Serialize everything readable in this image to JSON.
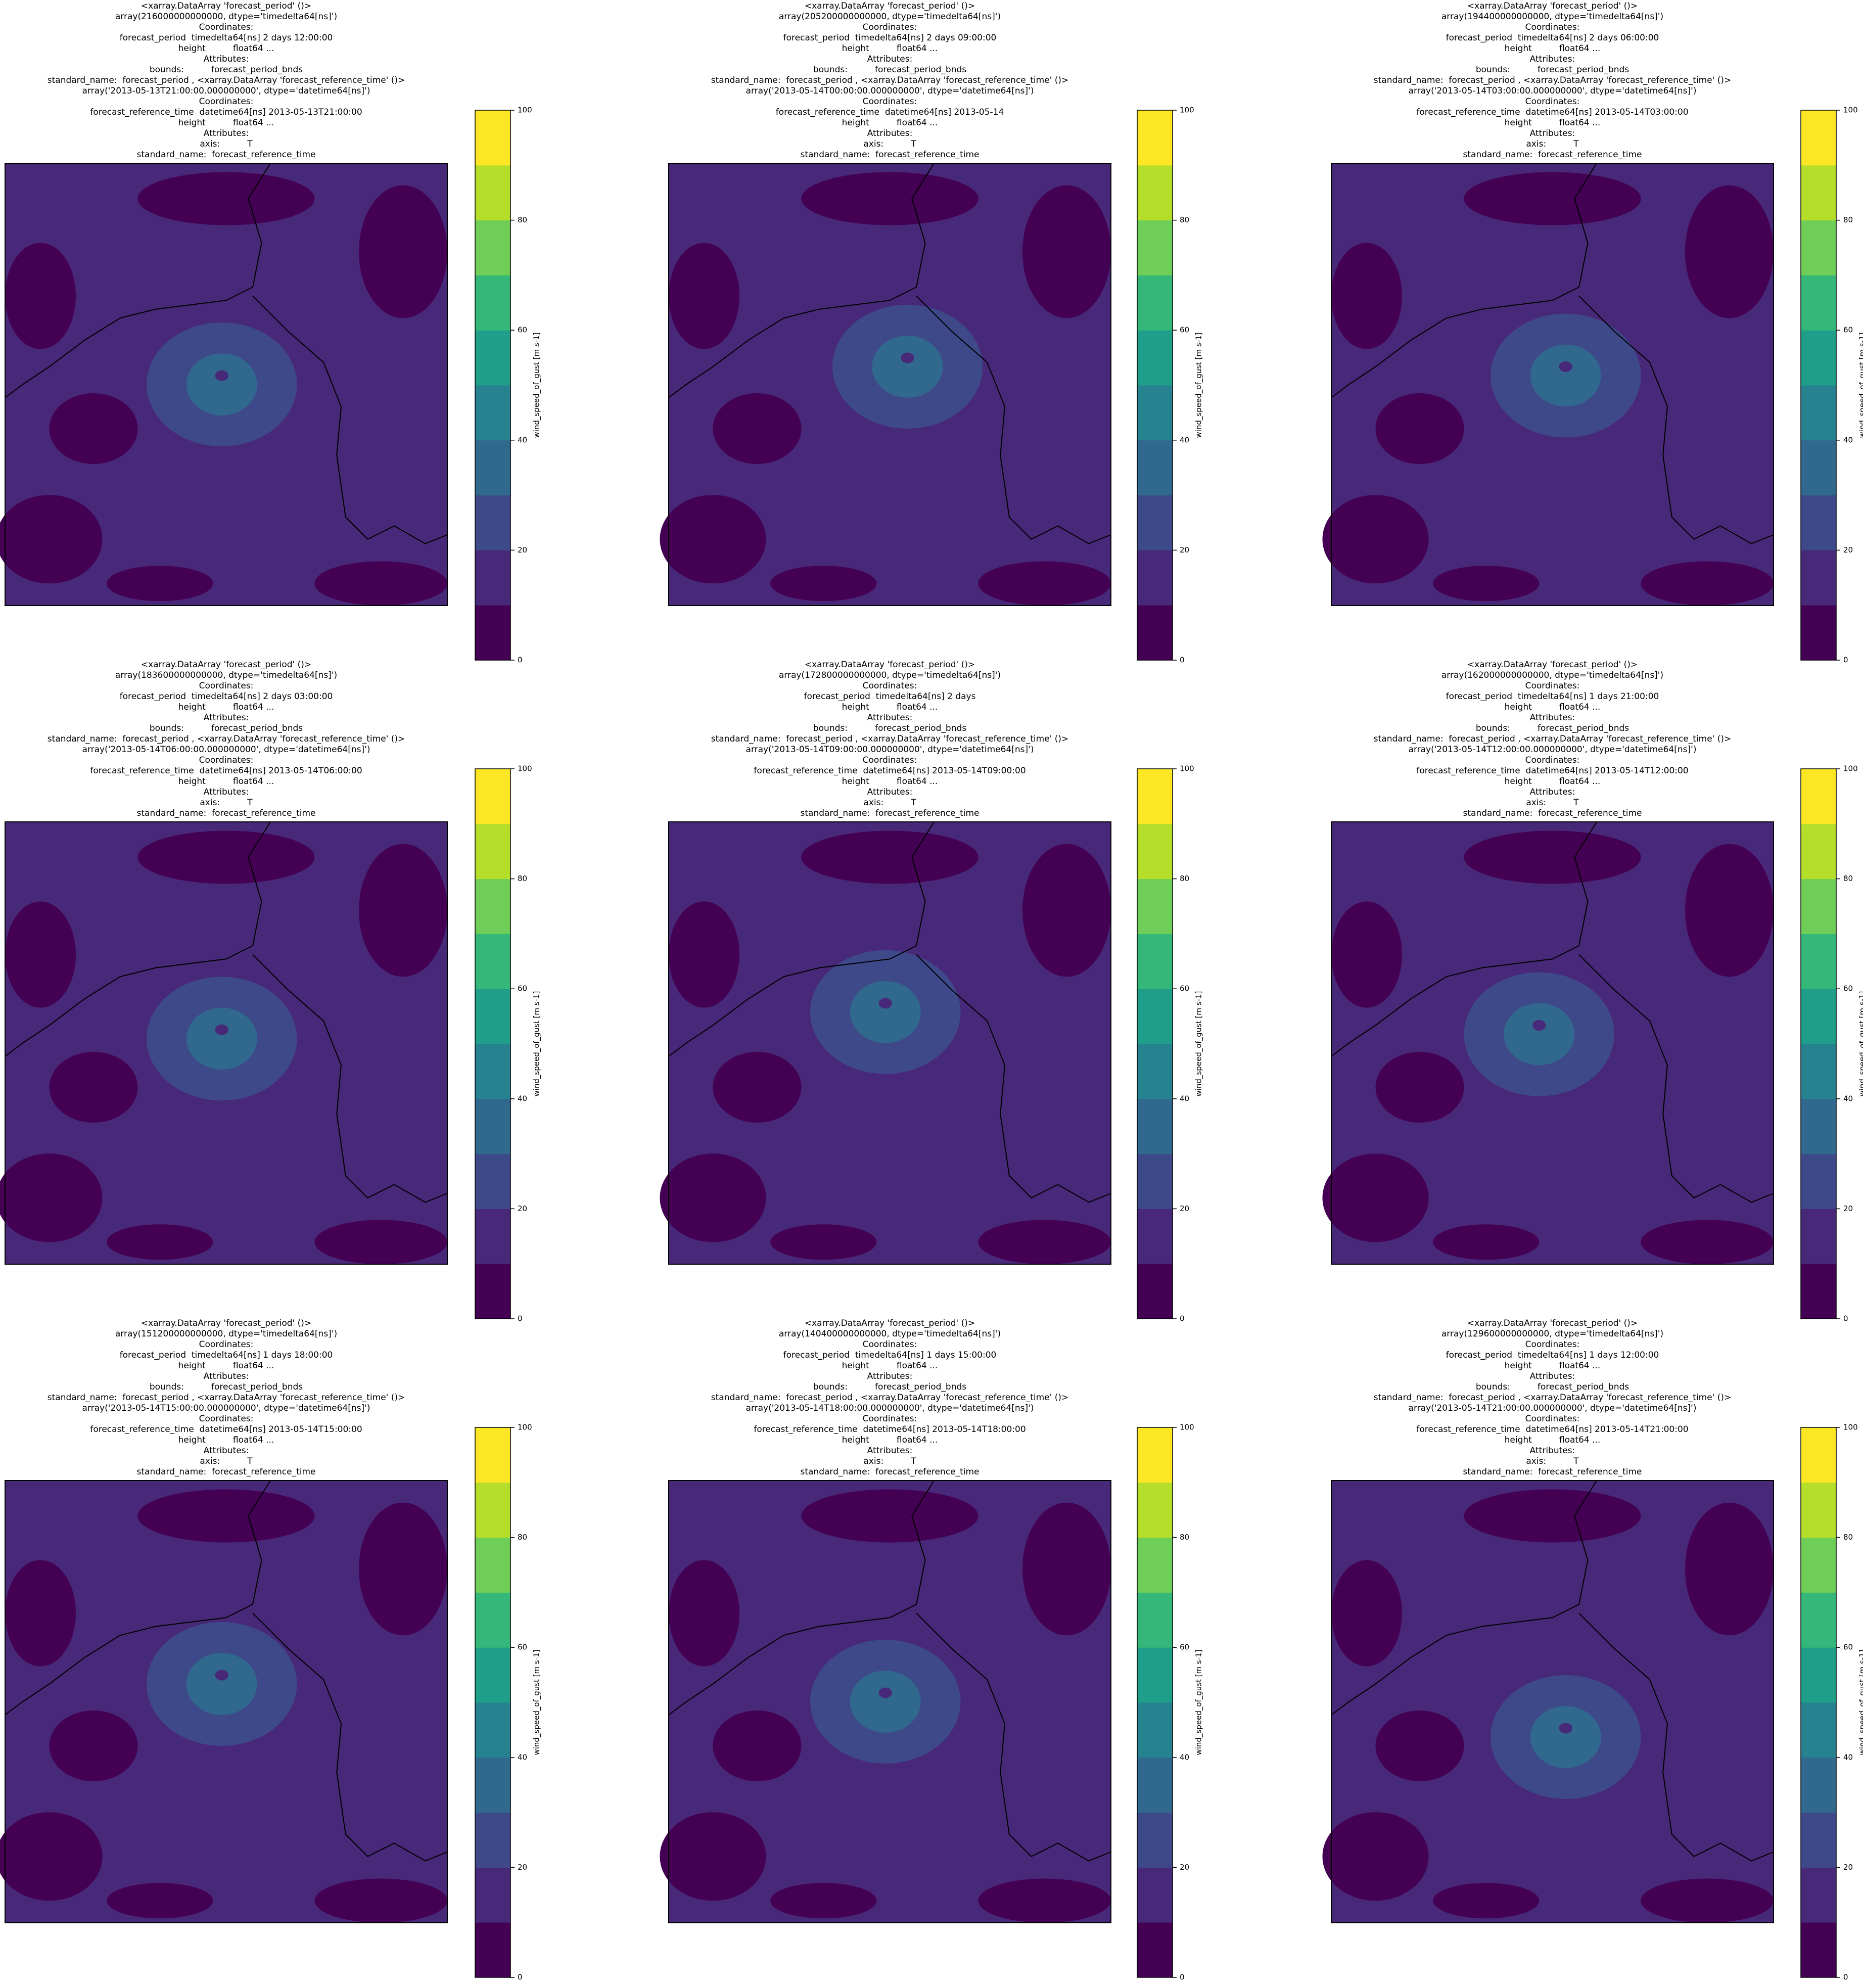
{
  "chart_data": [
    {
      "type": "contour",
      "title_lines": [
        "<xarray.DataArray 'forecast_period' ()>",
        "array(216000000000000, dtype='timedelta64[ns]')",
        "Coordinates:",
        "forecast_period  timedelta64[ns] 2 days 12:00:00",
        "height          float64 ...",
        "Attributes:",
        "bounds:          forecast_period_bnds",
        "standard_name:  forecast_period , <xarray.DataArray 'forecast_reference_time' ()>",
        "array('2013-05-13T21:00:00.000000000', dtype='datetime64[ns]')",
        "Coordinates:",
        "forecast_reference_time  datetime64[ns] 2013-05-13T21:00:00",
        "height          float64 ...",
        "Attributes:",
        "axis:          T",
        "standard_name:  forecast_reference_time"
      ],
      "colorbar": {
        "label": "wind_speed_of_gust [m s-1]",
        "lim": [
          0,
          100
        ],
        "ticks": [
          0,
          20,
          40,
          60,
          80,
          100
        ],
        "levels": [
          0,
          10,
          20,
          30,
          40,
          50,
          60,
          70,
          80,
          90,
          100
        ],
        "colors": [
          "#440154",
          "#482878",
          "#3e4989",
          "#31688e",
          "#26828e",
          "#1f9e89",
          "#35b779",
          "#6ece58",
          "#b5de2b",
          "#fde725"
        ]
      }
    },
    {
      "type": "contour",
      "title_lines": [
        "<xarray.DataArray 'forecast_period' ()>",
        "array(205200000000000, dtype='timedelta64[ns]')",
        "Coordinates:",
        "forecast_period  timedelta64[ns] 2 days 09:00:00",
        "height          float64 ...",
        "Attributes:",
        "bounds:          forecast_period_bnds",
        "standard_name:  forecast_period , <xarray.DataArray 'forecast_reference_time' ()>",
        "array('2013-05-14T00:00:00.000000000', dtype='datetime64[ns]')",
        "Coordinates:",
        "forecast_reference_time  datetime64[ns] 2013-05-14",
        "height          float64 ...",
        "Attributes:",
        "axis:          T",
        "standard_name:  forecast_reference_time"
      ],
      "colorbar": {
        "label": "wind_speed_of_gust [m s-1]",
        "lim": [
          0,
          100
        ],
        "ticks": [
          0,
          20,
          40,
          60,
          80,
          100
        ],
        "levels": [
          0,
          10,
          20,
          30,
          40,
          50,
          60,
          70,
          80,
          90,
          100
        ],
        "colors": [
          "#440154",
          "#482878",
          "#3e4989",
          "#31688e",
          "#26828e",
          "#1f9e89",
          "#35b779",
          "#6ece58",
          "#b5de2b",
          "#fde725"
        ]
      }
    },
    {
      "type": "contour",
      "title_lines": [
        "<xarray.DataArray 'forecast_period' ()>",
        "array(194400000000000, dtype='timedelta64[ns]')",
        "Coordinates:",
        "forecast_period  timedelta64[ns] 2 days 06:00:00",
        "height          float64 ...",
        "Attributes:",
        "bounds:          forecast_period_bnds",
        "standard_name:  forecast_period , <xarray.DataArray 'forecast_reference_time' ()>",
        "array('2013-05-14T03:00:00.000000000', dtype='datetime64[ns]')",
        "Coordinates:",
        "forecast_reference_time  datetime64[ns] 2013-05-14T03:00:00",
        "height          float64 ...",
        "Attributes:",
        "axis:          T",
        "standard_name:  forecast_reference_time"
      ],
      "colorbar": {
        "label": "wind_speed_of_gust [m s-1]",
        "lim": [
          0,
          100
        ],
        "ticks": [
          0,
          20,
          40,
          60,
          80,
          100
        ],
        "levels": [
          0,
          10,
          20,
          30,
          40,
          50,
          60,
          70,
          80,
          90,
          100
        ],
        "colors": [
          "#440154",
          "#482878",
          "#3e4989",
          "#31688e",
          "#26828e",
          "#1f9e89",
          "#35b779",
          "#6ece58",
          "#b5de2b",
          "#fde725"
        ]
      }
    },
    {
      "type": "contour",
      "title_lines": [
        "<xarray.DataArray 'forecast_period' ()>",
        "array(183600000000000, dtype='timedelta64[ns]')",
        "Coordinates:",
        "forecast_period  timedelta64[ns] 2 days 03:00:00",
        "height          float64 ...",
        "Attributes:",
        "bounds:          forecast_period_bnds",
        "standard_name:  forecast_period , <xarray.DataArray 'forecast_reference_time' ()>",
        "array('2013-05-14T06:00:00.000000000', dtype='datetime64[ns]')",
        "Coordinates:",
        "forecast_reference_time  datetime64[ns] 2013-05-14T06:00:00",
        "height          float64 ...",
        "Attributes:",
        "axis:          T",
        "standard_name:  forecast_reference_time"
      ],
      "colorbar": {
        "label": "wind_speed_of_gust [m s-1]",
        "lim": [
          0,
          100
        ],
        "ticks": [
          0,
          20,
          40,
          60,
          80,
          100
        ],
        "levels": [
          0,
          10,
          20,
          30,
          40,
          50,
          60,
          70,
          80,
          90,
          100
        ],
        "colors": [
          "#440154",
          "#482878",
          "#3e4989",
          "#31688e",
          "#26828e",
          "#1f9e89",
          "#35b779",
          "#6ece58",
          "#b5de2b",
          "#fde725"
        ]
      }
    },
    {
      "type": "contour",
      "title_lines": [
        "<xarray.DataArray 'forecast_period' ()>",
        "array(172800000000000, dtype='timedelta64[ns]')",
        "Coordinates:",
        "forecast_period  timedelta64[ns] 2 days",
        "height          float64 ...",
        "Attributes:",
        "bounds:          forecast_period_bnds",
        "standard_name:  forecast_period , <xarray.DataArray 'forecast_reference_time' ()>",
        "array('2013-05-14T09:00:00.000000000', dtype='datetime64[ns]')",
        "Coordinates:",
        "forecast_reference_time  datetime64[ns] 2013-05-14T09:00:00",
        "height          float64 ...",
        "Attributes:",
        "axis:          T",
        "standard_name:  forecast_reference_time"
      ],
      "colorbar": {
        "label": "wind_speed_of_gust [m s-1]",
        "lim": [
          0,
          100
        ],
        "ticks": [
          0,
          20,
          40,
          60,
          80,
          100
        ],
        "levels": [
          0,
          10,
          20,
          30,
          40,
          50,
          60,
          70,
          80,
          90,
          100
        ],
        "colors": [
          "#440154",
          "#482878",
          "#3e4989",
          "#31688e",
          "#26828e",
          "#1f9e89",
          "#35b779",
          "#6ece58",
          "#b5de2b",
          "#fde725"
        ]
      }
    },
    {
      "type": "contour",
      "title_lines": [
        "<xarray.DataArray 'forecast_period' ()>",
        "array(162000000000000, dtype='timedelta64[ns]')",
        "Coordinates:",
        "forecast_period  timedelta64[ns] 1 days 21:00:00",
        "height          float64 ...",
        "Attributes:",
        "bounds:          forecast_period_bnds",
        "standard_name:  forecast_period , <xarray.DataArray 'forecast_reference_time' ()>",
        "array('2013-05-14T12:00:00.000000000', dtype='datetime64[ns]')",
        "Coordinates:",
        "forecast_reference_time  datetime64[ns] 2013-05-14T12:00:00",
        "height          float64 ...",
        "Attributes:",
        "axis:          T",
        "standard_name:  forecast_reference_time"
      ],
      "colorbar": {
        "label": "wind_speed_of_gust [m s-1]",
        "lim": [
          0,
          100
        ],
        "ticks": [
          0,
          20,
          40,
          60,
          80,
          100
        ],
        "levels": [
          0,
          10,
          20,
          30,
          40,
          50,
          60,
          70,
          80,
          90,
          100
        ],
        "colors": [
          "#440154",
          "#482878",
          "#3e4989",
          "#31688e",
          "#26828e",
          "#1f9e89",
          "#35b779",
          "#6ece58",
          "#b5de2b",
          "#fde725"
        ]
      }
    },
    {
      "type": "contour",
      "title_lines": [
        "<xarray.DataArray 'forecast_period' ()>",
        "array(151200000000000, dtype='timedelta64[ns]')",
        "Coordinates:",
        "forecast_period  timedelta64[ns] 1 days 18:00:00",
        "height          float64 ...",
        "Attributes:",
        "bounds:          forecast_period_bnds",
        "standard_name:  forecast_period , <xarray.DataArray 'forecast_reference_time' ()>",
        "array('2013-05-14T15:00:00.000000000', dtype='datetime64[ns]')",
        "Coordinates:",
        "forecast_reference_time  datetime64[ns] 2013-05-14T15:00:00",
        "height          float64 ...",
        "Attributes:",
        "axis:          T",
        "standard_name:  forecast_reference_time"
      ],
      "colorbar": {
        "label": "wind_speed_of_gust [m s-1]",
        "lim": [
          0,
          100
        ],
        "ticks": [
          0,
          20,
          40,
          60,
          80,
          100
        ],
        "levels": [
          0,
          10,
          20,
          30,
          40,
          50,
          60,
          70,
          80,
          90,
          100
        ],
        "colors": [
          "#440154",
          "#482878",
          "#3e4989",
          "#31688e",
          "#26828e",
          "#1f9e89",
          "#35b779",
          "#6ece58",
          "#b5de2b",
          "#fde725"
        ]
      }
    },
    {
      "type": "contour",
      "title_lines": [
        "<xarray.DataArray 'forecast_period' ()>",
        "array(140400000000000, dtype='timedelta64[ns]')",
        "Coordinates:",
        "forecast_period  timedelta64[ns] 1 days 15:00:00",
        "height          float64 ...",
        "Attributes:",
        "bounds:          forecast_period_bnds",
        "standard_name:  forecast_period , <xarray.DataArray 'forecast_reference_time' ()>",
        "array('2013-05-14T18:00:00.000000000', dtype='datetime64[ns]')",
        "Coordinates:",
        "forecast_reference_time  datetime64[ns] 2013-05-14T18:00:00",
        "height          float64 ...",
        "Attributes:",
        "axis:          T",
        "standard_name:  forecast_reference_time"
      ],
      "colorbar": {
        "label": "wind_speed_of_gust [m s-1]",
        "lim": [
          0,
          100
        ],
        "ticks": [
          0,
          20,
          40,
          60,
          80,
          100
        ],
        "levels": [
          0,
          10,
          20,
          30,
          40,
          50,
          60,
          70,
          80,
          90,
          100
        ],
        "colors": [
          "#440154",
          "#482878",
          "#3e4989",
          "#31688e",
          "#26828e",
          "#1f9e89",
          "#35b779",
          "#6ece58",
          "#b5de2b",
          "#fde725"
        ]
      }
    },
    {
      "type": "contour",
      "title_lines": [
        "<xarray.DataArray 'forecast_period' ()>",
        "array(129600000000000, dtype='timedelta64[ns]')",
        "Coordinates:",
        "forecast_period  timedelta64[ns] 1 days 12:00:00",
        "height          float64 ...",
        "Attributes:",
        "bounds:          forecast_period_bnds",
        "standard_name:  forecast_period , <xarray.DataArray 'forecast_reference_time' ()>",
        "array('2013-05-14T21:00:00.000000000', dtype='datetime64[ns]')",
        "Coordinates:",
        "forecast_reference_time  datetime64[ns] 2013-05-14T21:00:00",
        "height          float64 ...",
        "Attributes:",
        "axis:          T",
        "standard_name:  forecast_reference_time"
      ],
      "colorbar": {
        "label": "wind_speed_of_gust [m s-1]",
        "lim": [
          0,
          100
        ],
        "ticks": [
          0,
          20,
          40,
          60,
          80,
          100
        ],
        "levels": [
          0,
          10,
          20,
          30,
          40,
          50,
          60,
          70,
          80,
          90,
          100
        ],
        "colors": [
          "#440154",
          "#482878",
          "#3e4989",
          "#31688e",
          "#26828e",
          "#1f9e89",
          "#35b779",
          "#6ece58",
          "#b5de2b",
          "#fde725"
        ]
      }
    }
  ]
}
